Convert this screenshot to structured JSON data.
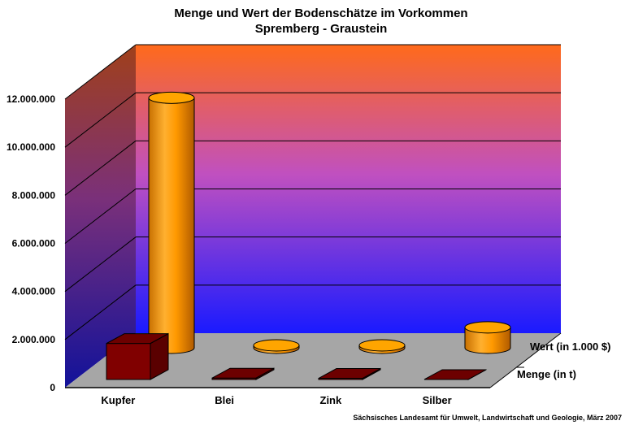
{
  "chart_data": {
    "type": "bar",
    "style": "3d-cylinder",
    "title_lines": [
      "Menge und Wert der Bodenschätze im Vorkommen",
      "Spremberg - Graustein"
    ],
    "categories": [
      "Kupfer",
      "Blei",
      "Zink",
      "Silber"
    ],
    "series": [
      {
        "name": "Menge (in t)",
        "values": [
          1500000,
          60000,
          50000,
          1000
        ],
        "color": "#800000"
      },
      {
        "name": "Wert (in 1.000 $)",
        "values": [
          10400000,
          80000,
          80000,
          850000
        ],
        "color": "#ff9900"
      }
    ],
    "y_ticks": [
      "0",
      "2.000.000",
      "4.000.000",
      "6.000.000",
      "8.000.000",
      "10.000.000",
      "12.000.000"
    ],
    "ylim": [
      0,
      12000000
    ],
    "grid": true,
    "wall_gradient": {
      "top": "#ff6a1a",
      "middle": "#c050c0",
      "bottom": "#1a1aff"
    },
    "floor_color": "#a6a6a6",
    "source": "Sächsisches Landesamt für Umwelt, Landwirtschaft und Geologie, März 2007"
  }
}
